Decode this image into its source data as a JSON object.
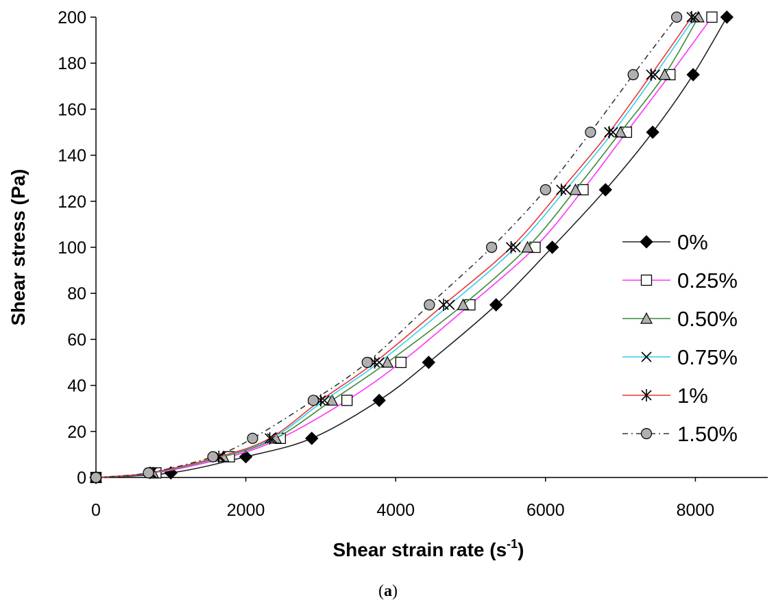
{
  "chart_data": {
    "type": "line",
    "title": "",
    "xlabel": "Shear strain rate (s",
    "xlabel_sup": "-1",
    "xlabel_close": ")",
    "ylabel": "Shear stress (Pa)",
    "xlim": [
      0,
      9000
    ],
    "ylim": [
      0,
      200
    ],
    "xticks": [
      0,
      2000,
      4000,
      6000,
      8000
    ],
    "yticks": [
      0,
      20,
      40,
      60,
      80,
      100,
      120,
      140,
      160,
      180,
      200
    ],
    "grid": false,
    "legend_position": "right",
    "y_values": [
      0,
      2,
      9,
      17,
      33.5,
      50,
      75,
      100,
      125,
      150,
      175,
      200
    ],
    "series": [
      {
        "name": "0%",
        "color": "#222222",
        "marker": "diamond",
        "dash": "",
        "x": [
          0,
          1000,
          2000,
          2880,
          3780,
          4440,
          5340,
          6090,
          6800,
          7430,
          7970,
          8420
        ]
      },
      {
        "name": "0.25%",
        "color": "#ff33ff",
        "marker": "square",
        "dash": "",
        "x": [
          0,
          800,
          1780,
          2460,
          3350,
          4070,
          4990,
          5860,
          6500,
          7080,
          7660,
          8220
        ]
      },
      {
        "name": "0.50%",
        "color": "#3a8a3a",
        "marker": "triangle",
        "dash": "",
        "x": [
          0,
          760,
          1700,
          2400,
          3150,
          3890,
          4900,
          5760,
          6400,
          7000,
          7590,
          8040
        ]
      },
      {
        "name": "0.75%",
        "color": "#33ccee",
        "marker": "x",
        "dash": "",
        "x": [
          0,
          740,
          1660,
          2350,
          3050,
          3780,
          4720,
          5600,
          6270,
          6900,
          7460,
          7990
        ]
      },
      {
        "name": "1%",
        "color": "#ee3333",
        "marker": "asterisk",
        "dash": "",
        "x": [
          0,
          720,
          1640,
          2320,
          3000,
          3720,
          4640,
          5540,
          6210,
          6850,
          7410,
          7950
        ]
      },
      {
        "name": "1.50%",
        "color": "#333333",
        "marker": "circle",
        "dash": "8,5,2,5",
        "x": [
          0,
          700,
          1560,
          2090,
          2900,
          3620,
          4450,
          5280,
          6000,
          6600,
          7170,
          7750
        ]
      }
    ]
  },
  "caption": {
    "open": "(",
    "letter": "a",
    "close": ")"
  }
}
